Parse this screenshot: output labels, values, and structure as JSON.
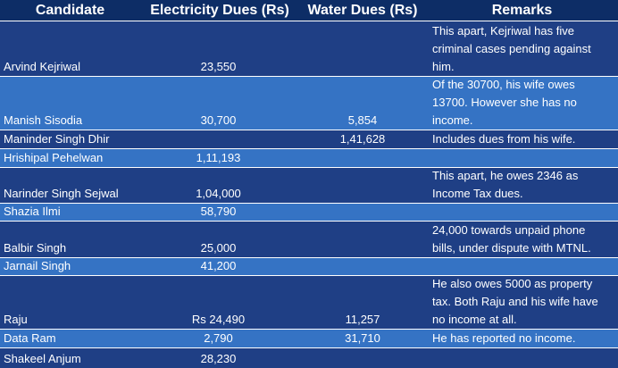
{
  "header": {
    "candidate": "Candidate",
    "electricity": "Electricity Dues (Rs)",
    "water": "Water Dues (Rs)",
    "remarks": "Remarks"
  },
  "rows": [
    {
      "name": "Arvind Kejriwal",
      "electricity": "23,550",
      "water": "",
      "remarks": "This apart, Kejriwal has five\ncriminal cases pending against\nhim."
    },
    {
      "name": "Manish Sisodia",
      "electricity": "30,700",
      "water": "5,854",
      "remarks": "Of the 30700, his wife owes\n13700. However she has no\nincome."
    },
    {
      "name": "Maninder Singh Dhir",
      "electricity": "",
      "water": "1,41,628",
      "remarks": "Includes dues from his wife."
    },
    {
      "name": "Hrishipal Pehelwan",
      "electricity": "1,11,193",
      "water": "",
      "remarks": ""
    },
    {
      "name": "Narinder Singh Sejwal",
      "electricity": "1,04,000",
      "water": "",
      "remarks": "This apart, he owes 2346 as\nIncome Tax dues."
    },
    {
      "name": "Shazia Ilmi",
      "electricity": "58,790",
      "water": "",
      "remarks": ""
    },
    {
      "name": "Balbir Singh",
      "electricity": "25,000",
      "water": "",
      "remarks": "24,000 towards unpaid phone\nbills, under dispute with MTNL."
    },
    {
      "name": "Jarnail Singh",
      "electricity": "41,200",
      "water": "",
      "remarks": ""
    },
    {
      "name": "Raju",
      "electricity": "Rs 24,490",
      "water": "11,257",
      "remarks": "He also owes 5000 as property\ntax. Both Raju and his wife have\nno income at all."
    },
    {
      "name": "Data Ram",
      "electricity": "2,790",
      "water": "31,710",
      "remarks": "He has reported no income."
    },
    {
      "name": "Shakeel Anjum",
      "electricity": "28,230",
      "water": "",
      "remarks": ""
    }
  ],
  "colors": {
    "header_bg": "#0d2d66",
    "row_dark": "#1f3f85",
    "row_light": "#3573c4",
    "text": "#ffffff"
  }
}
